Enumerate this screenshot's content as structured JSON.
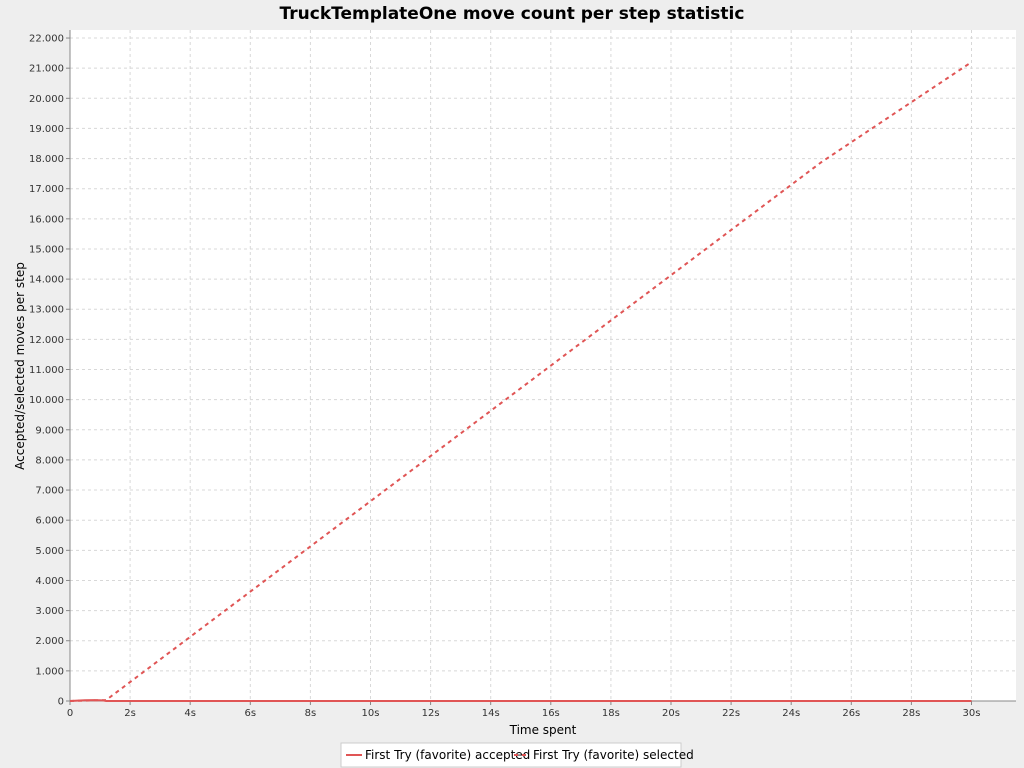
{
  "chart_data": {
    "type": "line",
    "title": "TruckTemplateOne move count per step statistic",
    "xlabel": "Time spent",
    "ylabel": "Accepted/selected moves per step",
    "xlim": [
      0,
      31.5
    ],
    "ylim": [
      0,
      22500
    ],
    "x_ticks": [
      0,
      2,
      4,
      6,
      8,
      10,
      12,
      14,
      16,
      18,
      20,
      22,
      24,
      26,
      28,
      30
    ],
    "x_tick_labels": [
      "0",
      "2s",
      "4s",
      "6s",
      "8s",
      "10s",
      "12s",
      "14s",
      "16s",
      "18s",
      "20s",
      "22s",
      "24s",
      "26s",
      "28s",
      "30s"
    ],
    "y_ticks": [
      0,
      1000,
      2000,
      3000,
      4000,
      5000,
      6000,
      7000,
      8000,
      9000,
      10000,
      11000,
      12000,
      13000,
      14000,
      15000,
      16000,
      17000,
      18000,
      19000,
      20000,
      21000,
      22000
    ],
    "y_tick_labels": [
      "0",
      "1.000",
      "2.000",
      "3.000",
      "4.000",
      "5.000",
      "6.000",
      "7.000",
      "8.000",
      "9.000",
      "10.000",
      "11.000",
      "12.000",
      "13.000",
      "14.000",
      "15.000",
      "16.000",
      "17.000",
      "18.000",
      "19.000",
      "20.000",
      "21.000",
      "22.000"
    ],
    "grid": true,
    "legend_position": "bottom",
    "series": [
      {
        "name": "First Try (favorite) accepted",
        "color": "#e05555",
        "style": "solid",
        "x": [
          0,
          0.5,
          0.8,
          1.1,
          1.2,
          30
        ],
        "y": [
          0,
          25,
          30,
          20,
          0,
          0
        ]
      },
      {
        "name": "First Try (favorite) selected",
        "color": "#e05555",
        "style": "dashed",
        "x": [
          0,
          0.8,
          1.2,
          5,
          10,
          15,
          20,
          25,
          30
        ],
        "y": [
          0,
          20,
          30,
          2880,
          6630,
          10380,
          14130,
          17880,
          21200
        ]
      }
    ]
  }
}
